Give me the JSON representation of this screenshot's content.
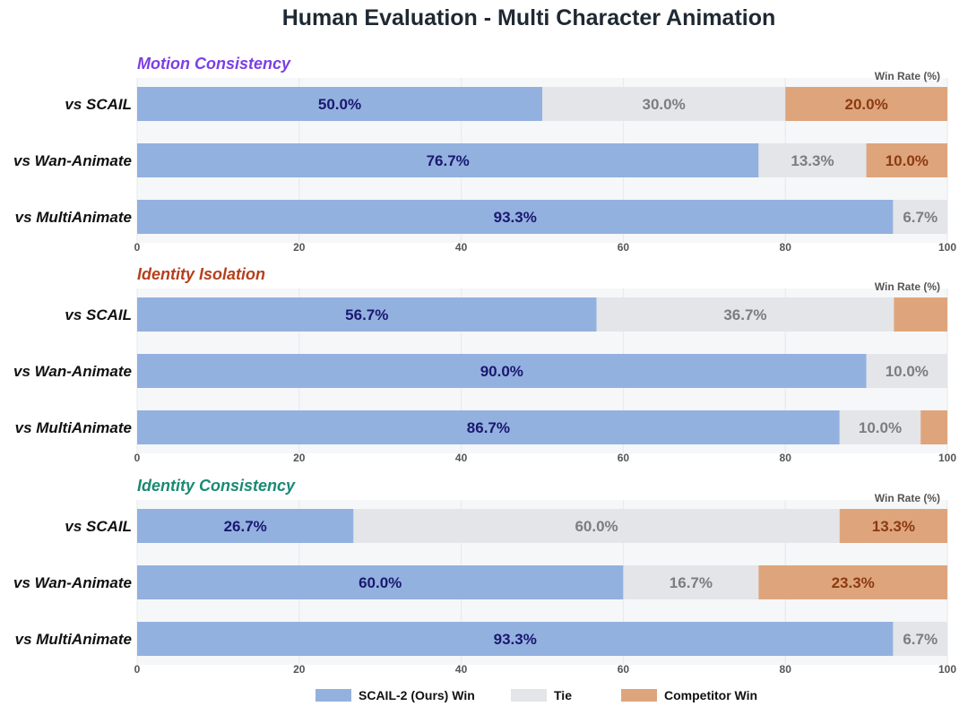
{
  "chart_data": {
    "type": "bar",
    "orientation": "horizontal",
    "stacked": true,
    "title": "Human Evaluation - Multi Character Animation",
    "colors": {
      "ours": "#93b1df",
      "tie": "#e4e5e8",
      "competitor": "#dea57c",
      "ours_text": "#1a1870",
      "tie_text": "#7b7d82",
      "competitor_text": "#8c3a12"
    },
    "legend": {
      "placement": "bottom",
      "items": [
        "SCAIL-2 (Ours) Win",
        "Tie",
        "Competitor Win"
      ]
    },
    "panels": [
      {
        "title": "Motion Consistency",
        "title_color": "#7b3fe4",
        "axis_label": "Win Rate (%)",
        "xlim": [
          0,
          100
        ],
        "ticks": [
          "0",
          "20",
          "40",
          "60",
          "80",
          "100"
        ],
        "categories": [
          "vs SCAIL",
          "vs Wan-Animate",
          "vs MultiAnimate"
        ],
        "series": [
          {
            "name": "SCAIL-2 (Ours) Win",
            "values": [
              50.0,
              76.7,
              93.3
            ],
            "labels": [
              "50.0%",
              "76.7%",
              "93.3%"
            ]
          },
          {
            "name": "Tie",
            "values": [
              30.0,
              13.3,
              6.7
            ],
            "labels": [
              "30.0%",
              "13.3%",
              "6.7%"
            ]
          },
          {
            "name": "Competitor Win",
            "values": [
              20.0,
              10.0,
              0.0
            ],
            "labels": [
              "20.0%",
              "10.0%",
              ""
            ]
          }
        ]
      },
      {
        "title": "Identity Isolation",
        "title_color": "#b5401d",
        "axis_label": "Win Rate (%)",
        "xlim": [
          0,
          100
        ],
        "ticks": [
          "0",
          "20",
          "40",
          "60",
          "80",
          "100"
        ],
        "categories": [
          "vs SCAIL",
          "vs Wan-Animate",
          "vs MultiAnimate"
        ],
        "series": [
          {
            "name": "SCAIL-2 (Ours) Win",
            "values": [
              56.7,
              90.0,
              86.7
            ],
            "labels": [
              "56.7%",
              "90.0%",
              "86.7%"
            ]
          },
          {
            "name": "Tie",
            "values": [
              36.7,
              10.0,
              10.0
            ],
            "labels": [
              "36.7%",
              "10.0%",
              "10.0%"
            ]
          },
          {
            "name": "Competitor Win",
            "values": [
              6.6,
              0.0,
              3.3
            ],
            "labels": [
              "",
              "",
              ""
            ]
          }
        ]
      },
      {
        "title": "Identity Consistency",
        "title_color": "#1a8a74",
        "axis_label": "Win Rate (%)",
        "xlim": [
          0,
          100
        ],
        "ticks": [
          "0",
          "20",
          "40",
          "60",
          "80",
          "100"
        ],
        "categories": [
          "vs SCAIL",
          "vs Wan-Animate",
          "vs MultiAnimate"
        ],
        "series": [
          {
            "name": "SCAIL-2 (Ours) Win",
            "values": [
              26.7,
              60.0,
              93.3
            ],
            "labels": [
              "26.7%",
              "60.0%",
              "93.3%"
            ]
          },
          {
            "name": "Tie",
            "values": [
              60.0,
              16.7,
              6.7
            ],
            "labels": [
              "60.0%",
              "16.7%",
              "6.7%"
            ]
          },
          {
            "name": "Competitor Win",
            "values": [
              13.3,
              23.3,
              0.0
            ],
            "labels": [
              "13.3%",
              "23.3%",
              ""
            ]
          }
        ]
      }
    ]
  }
}
